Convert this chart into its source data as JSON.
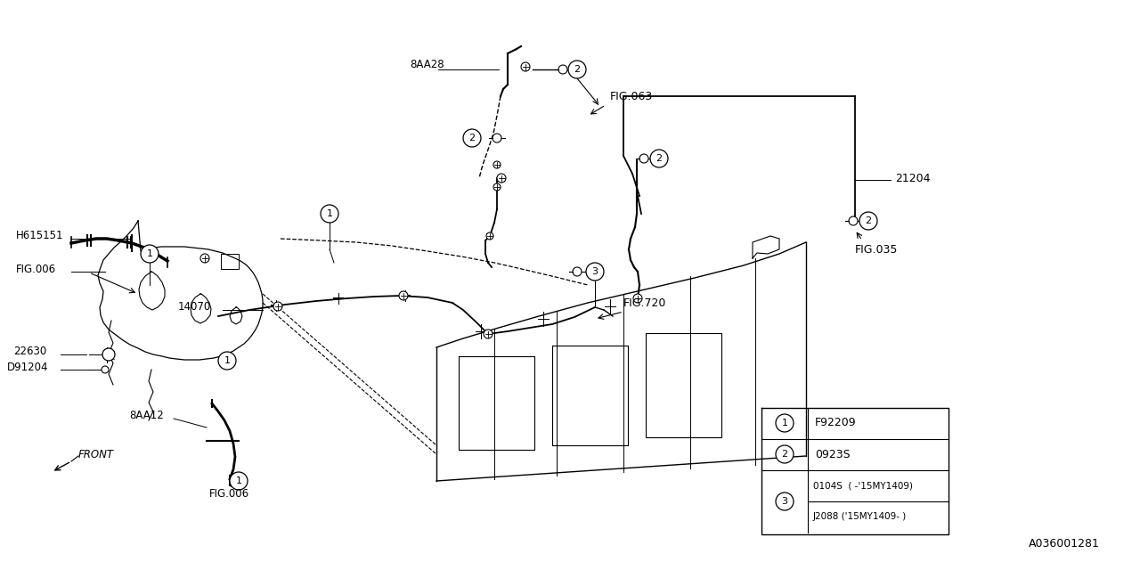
{
  "bg_color": "#ffffff",
  "line_color": "#000000",
  "fig_width": 12.8,
  "fig_height": 6.4,
  "part_number": "A036001281",
  "legend_rows": [
    {
      "num": "1",
      "code": "F92209"
    },
    {
      "num": "2",
      "code": "0923S"
    },
    {
      "num": "3",
      "code1": "0104S  ( -’15MY1409)",
      "code2": "J2088 (’15MY1409- )"
    }
  ]
}
